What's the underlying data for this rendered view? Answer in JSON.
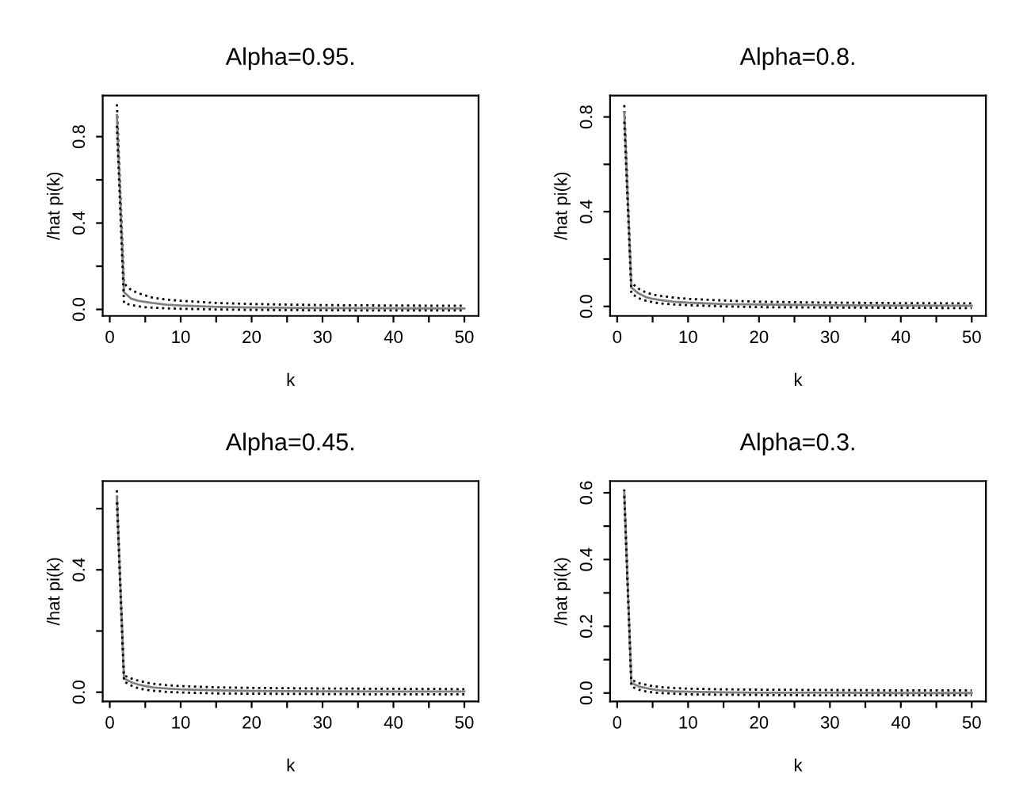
{
  "chart_data": [
    {
      "type": "line",
      "title": "Alpha=0.95.",
      "xlabel": "k",
      "ylabel": "/hat pi(k)",
      "x": [
        1,
        2,
        3,
        4,
        5,
        6,
        8,
        10,
        15,
        20,
        30,
        40,
        50
      ],
      "xlim": [
        -1,
        52
      ],
      "xticks": [
        0,
        {
          "value": 5,
          "label": null
        },
        10,
        {
          "value": 15,
          "label": null
        },
        20,
        {
          "value": 25,
          "label": null
        },
        30,
        {
          "value": 35,
          "label": null
        },
        40,
        {
          "value": 45,
          "label": null
        },
        50
      ],
      "ylim": [
        -0.03,
        0.99
      ],
      "yticks": [
        {
          "value": 0,
          "label": "0.0"
        },
        {
          "value": 0.2,
          "label": null
        },
        0.4,
        {
          "value": 0.6,
          "label": null
        },
        0.8
      ],
      "grid": false,
      "legend": false,
      "series": [
        {
          "color": "#000000",
          "line_style": "dotted",
          "values": [
            0.95,
            0.12,
            0.09,
            0.075,
            0.065,
            0.055,
            0.045,
            0.04,
            0.03,
            0.025,
            0.02,
            0.018,
            0.017
          ]
        },
        {
          "color": "#808080",
          "line_style": "solid",
          "values": [
            0.9,
            0.08,
            0.05,
            0.04,
            0.035,
            0.03,
            0.022,
            0.018,
            0.012,
            0.009,
            0.006,
            0.005,
            0.004
          ]
        },
        {
          "color": "#000000",
          "line_style": "dotted",
          "values": [
            0.85,
            0.03,
            0.02,
            0.015,
            0.01,
            0.008,
            0.005,
            0.003,
            0.0,
            -0.002,
            -0.004,
            -0.005,
            -0.005
          ]
        }
      ]
    },
    {
      "type": "line",
      "title": "Alpha=0.8.",
      "xlabel": "k",
      "ylabel": "/hat pi(k)",
      "x": [
        1,
        2,
        3,
        4,
        5,
        6,
        8,
        10,
        15,
        20,
        30,
        40,
        50
      ],
      "xlim": [
        -1,
        52
      ],
      "xticks": [
        0,
        {
          "value": 5,
          "label": null
        },
        10,
        {
          "value": 15,
          "label": null
        },
        20,
        {
          "value": 25,
          "label": null
        },
        30,
        {
          "value": 35,
          "label": null
        },
        40,
        {
          "value": 45,
          "label": null
        },
        50
      ],
      "ylim": [
        -0.04,
        0.89
      ],
      "yticks": [
        {
          "value": 0,
          "label": "0.0"
        },
        {
          "value": 0.2,
          "label": null
        },
        0.4,
        {
          "value": 0.6,
          "label": null
        },
        0.8
      ],
      "grid": false,
      "legend": false,
      "series": [
        {
          "color": "#000000",
          "line_style": "dotted",
          "values": [
            0.85,
            0.1,
            0.075,
            0.06,
            0.05,
            0.045,
            0.037,
            0.032,
            0.025,
            0.02,
            0.016,
            0.014,
            0.013
          ]
        },
        {
          "color": "#808080",
          "line_style": "solid",
          "values": [
            0.82,
            0.08,
            0.055,
            0.04,
            0.032,
            0.027,
            0.02,
            0.016,
            0.01,
            0.008,
            0.005,
            0.004,
            0.003
          ]
        },
        {
          "color": "#000000",
          "line_style": "dotted",
          "values": [
            0.78,
            0.055,
            0.035,
            0.025,
            0.018,
            0.013,
            0.008,
            0.005,
            0.0,
            -0.003,
            -0.005,
            -0.006,
            -0.007
          ]
        }
      ]
    },
    {
      "type": "line",
      "title": "Alpha=0.45.",
      "xlabel": "k",
      "ylabel": "/hat pi(k)",
      "x": [
        1,
        2,
        3,
        4,
        5,
        6,
        8,
        10,
        15,
        20,
        30,
        40,
        50
      ],
      "xlim": [
        -1,
        52
      ],
      "xticks": [
        0,
        {
          "value": 5,
          "label": null
        },
        10,
        {
          "value": 15,
          "label": null
        },
        20,
        {
          "value": 25,
          "label": null
        },
        30,
        {
          "value": 35,
          "label": null
        },
        40,
        {
          "value": 45,
          "label": null
        },
        50
      ],
      "ylim": [
        -0.03,
        0.69
      ],
      "yticks": [
        {
          "value": 0,
          "label": "0.0"
        },
        {
          "value": 0.2,
          "label": null
        },
        0.4,
        {
          "value": 0.6,
          "label": null
        }
      ],
      "grid": false,
      "legend": false,
      "series": [
        {
          "color": "#000000",
          "line_style": "dotted",
          "values": [
            0.66,
            0.055,
            0.045,
            0.038,
            0.032,
            0.028,
            0.023,
            0.02,
            0.016,
            0.014,
            0.012,
            0.011,
            0.01
          ]
        },
        {
          "color": "#808080",
          "line_style": "solid",
          "values": [
            0.64,
            0.045,
            0.033,
            0.025,
            0.02,
            0.016,
            0.012,
            0.009,
            0.006,
            0.004,
            0.003,
            0.002,
            0.002
          ]
        },
        {
          "color": "#000000",
          "line_style": "dotted",
          "values": [
            0.62,
            0.035,
            0.022,
            0.013,
            0.008,
            0.005,
            0.001,
            -0.001,
            -0.004,
            -0.005,
            -0.006,
            -0.007,
            -0.007
          ]
        }
      ]
    },
    {
      "type": "line",
      "title": "Alpha=0.3.",
      "xlabel": "k",
      "ylabel": "/hat pi(k)",
      "x": [
        1,
        2,
        3,
        4,
        5,
        6,
        8,
        10,
        15,
        20,
        30,
        40,
        50
      ],
      "xlim": [
        -1,
        52
      ],
      "xticks": [
        0,
        {
          "value": 5,
          "label": null
        },
        10,
        {
          "value": 15,
          "label": null
        },
        20,
        {
          "value": 25,
          "label": null
        },
        30,
        {
          "value": 35,
          "label": null
        },
        40,
        {
          "value": 45,
          "label": null
        },
        50
      ],
      "ylim": [
        -0.025,
        0.635
      ],
      "yticks": [
        {
          "value": 0,
          "label": "0.0"
        },
        {
          "value": 0.1,
          "label": null
        },
        0.2,
        {
          "value": 0.3,
          "label": null
        },
        0.4,
        {
          "value": 0.5,
          "label": null
        },
        0.6
      ],
      "grid": false,
      "legend": false,
      "series": [
        {
          "color": "#000000",
          "line_style": "dotted",
          "values": [
            0.61,
            0.04,
            0.03,
            0.025,
            0.021,
            0.018,
            0.015,
            0.013,
            0.011,
            0.01,
            0.009,
            0.008,
            0.008
          ]
        },
        {
          "color": "#808080",
          "line_style": "solid",
          "values": [
            0.6,
            0.03,
            0.02,
            0.015,
            0.011,
            0.008,
            0.005,
            0.004,
            0.002,
            0.001,
            0.001,
            0.0,
            0.0
          ]
        },
        {
          "color": "#000000",
          "line_style": "dotted",
          "values": [
            0.59,
            0.02,
            0.01,
            0.005,
            0.002,
            0.0,
            -0.002,
            -0.004,
            -0.005,
            -0.006,
            -0.007,
            -0.007,
            -0.007
          ]
        }
      ]
    }
  ]
}
